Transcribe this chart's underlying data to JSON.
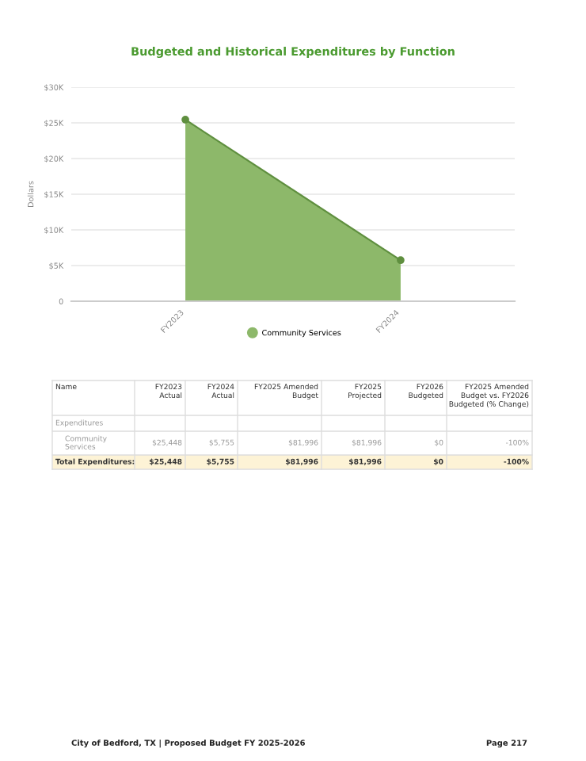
{
  "chart_data": [
    {
      "type": "area",
      "title": "Budgeted and Historical Expenditures by Function",
      "ylabel": "Dollars",
      "categories": [
        "FY2023",
        "FY2024"
      ],
      "series": [
        {
          "name": "Community Services",
          "color": "#8db86a",
          "values": [
            25448,
            5755
          ]
        }
      ],
      "ylim": [
        0,
        30000
      ],
      "yticks": [
        {
          "value": 0,
          "label": "0"
        },
        {
          "value": 5000,
          "label": "$5K"
        },
        {
          "value": 10000,
          "label": "$10K"
        },
        {
          "value": 15000,
          "label": "$15K"
        },
        {
          "value": 20000,
          "label": "$20K"
        },
        {
          "value": 25000,
          "label": "$25K"
        },
        {
          "value": 30000,
          "label": "$30K"
        }
      ],
      "grid": "y",
      "legend": "bottom",
      "marker": "circle"
    },
    {
      "type": "other",
      "ylabel": "Name",
      "categories": [
        "FY2023\nActual",
        "FY2024\nActual",
        "FY2025 Amended\nBudget",
        "FY2025\nProjected",
        "FY2026\nBudgeted",
        "FY2025 Amended\nBudget vs. FY2026\nBudgeted (% Change)"
      ],
      "y_categories": [
        "Expenditures",
        "Community\nServices",
        "Total Expenditures:"
      ],
      "cell_labels": [
        [
          null,
          null,
          null,
          null,
          null,
          null
        ],
        [
          "$25,448",
          "$5,755",
          "$81,996",
          "$81,996",
          "$0",
          "-100%"
        ],
        [
          "$25,448",
          "$5,755",
          "$81,996",
          "$81,996",
          "$0",
          "-100%"
        ]
      ],
      "annotations": [
        "City of Bedford, TX | Proposed Budget FY 2025-2026",
        "Page 217"
      ]
    }
  ]
}
